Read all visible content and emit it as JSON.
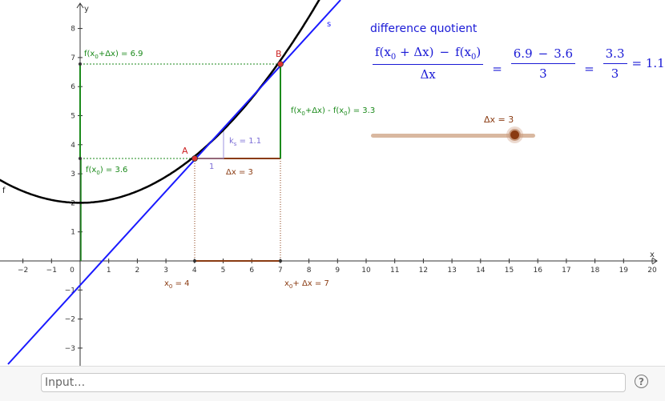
{
  "formula": {
    "title": "difference quotient",
    "lhs_num_part1": "f(x",
    "lhs_num_sub1": "0",
    "lhs_num_part2": " + Δx)",
    "lhs_minus": "−",
    "lhs_num_part3": "f(x",
    "lhs_num_sub2": "0",
    "lhs_num_part4": ")",
    "lhs_den": "Δx",
    "mid_num_a": "6.9",
    "mid_minus": "−",
    "mid_num_b": "3.6",
    "mid_den": "3",
    "rhs_num": "3.3",
    "rhs_den": "3",
    "result": "= 1.1",
    "eq_sign": "="
  },
  "slider": {
    "label": "Δx = 3",
    "value": 3,
    "min": -7.2,
    "max": 4.5
  },
  "graph": {
    "axis_x_label": "x",
    "axis_y_label": "y",
    "x_ticks": [
      "−2",
      "−1",
      "0",
      "1",
      "2",
      "3",
      "4",
      "5",
      "6",
      "7",
      "8",
      "9",
      "10",
      "11",
      "12",
      "13",
      "14",
      "15",
      "16",
      "17",
      "18",
      "19",
      "20"
    ],
    "y_ticks": [
      "−3",
      "−2",
      "−1",
      "1",
      "2",
      "3",
      "4",
      "5",
      "6",
      "7",
      "8"
    ],
    "point_a": "A",
    "point_b": "B",
    "curve_name": "f",
    "secant_name": "s",
    "fx0_label_main": "f(x",
    "fx0_label_sub": "0",
    "fx0_label_rest": ") = 3.6",
    "fx1_label_main": "f(x",
    "fx1_label_sub": "0",
    "fx1_label_rest": "+Δx) = 6.9",
    "diff_label_a": "f(x",
    "diff_label_sub1": "0",
    "diff_label_b": "+Δx) - f(x",
    "diff_label_sub2": "0",
    "diff_label_c": ") = 3.3",
    "dx_label": "Δx = 3",
    "ks_label_main": "k",
    "ks_label_sub": "s",
    "ks_label_rest": " = 1.1",
    "one_label": "1",
    "x0_label_main": "x",
    "x0_label_sub": "0",
    "x0_label_rest": " = 4",
    "x1_label_main": "x",
    "x1_label_sub": "0",
    "x1_label_rest": "+ Δx = 7"
  },
  "input_bar": {
    "placeholder": "Input…",
    "help_label": "?"
  }
}
